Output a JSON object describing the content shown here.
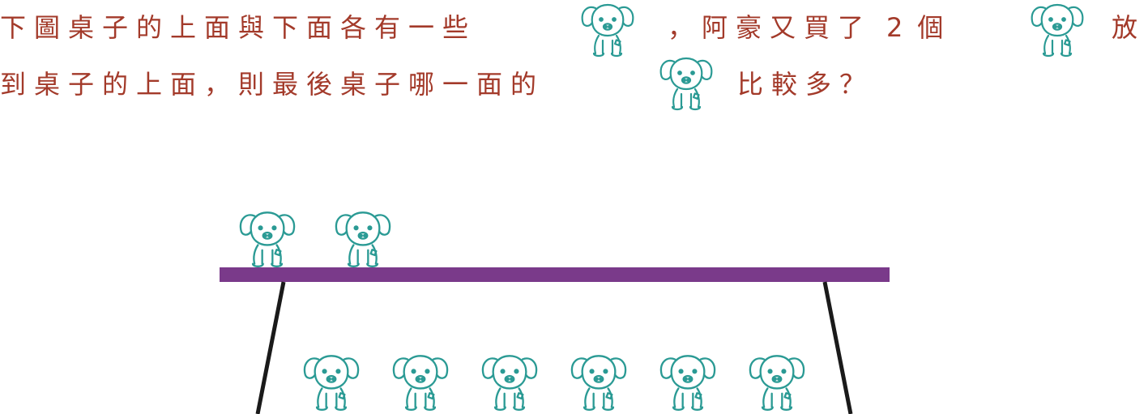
{
  "question": {
    "line1": {
      "part1": "下圖桌子的上面與下面各有一些",
      "part2": "，阿豪又買了",
      "count": "2",
      "part3": "個",
      "part4": "放"
    },
    "line2": {
      "part1": "到桌子的上面，則最後桌子哪一面的",
      "part2": "比較多？"
    }
  },
  "scene": {
    "top_puppy_count": 2,
    "bottom_puppy_count": 6
  },
  "colors": {
    "text": "#a33a2a",
    "puppy": "#2a9a94",
    "tabletop": "#7a3a8a",
    "table_legs": "#1a1a1a"
  },
  "icons": {
    "puppy": "puppy-icon"
  }
}
